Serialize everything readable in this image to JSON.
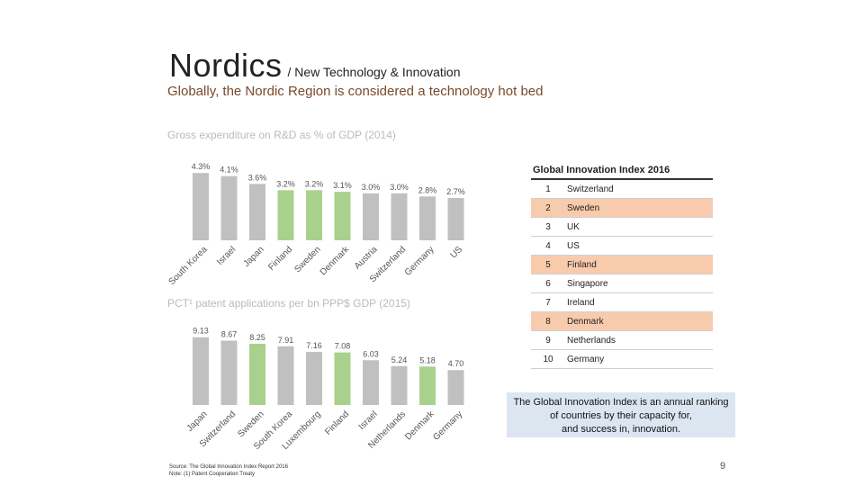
{
  "header": {
    "title": "Nordics",
    "title_sub": "/ New Technology & Innovation",
    "subtitle": "Globally, the Nordic Region is considered a technology hot bed"
  },
  "chart_data": [
    {
      "type": "bar",
      "title": "Gross expenditure on R&D as % of GDP (2014)",
      "categories": [
        "South Korea",
        "Israel",
        "Japan",
        "Finland",
        "Sweden",
        "Denmark",
        "Austria",
        "Switzerland",
        "Germany",
        "US"
      ],
      "values": [
        4.3,
        4.1,
        3.6,
        3.2,
        3.2,
        3.1,
        3.0,
        3.0,
        2.8,
        2.7
      ],
      "labels": [
        "4.3%",
        "4.1%",
        "3.6%",
        "3.2%",
        "3.2%",
        "3.1%",
        "3.0%",
        "3.0%",
        "2.8%",
        "2.7%"
      ],
      "highlight": [
        false,
        false,
        false,
        true,
        true,
        true,
        false,
        false,
        false,
        false
      ],
      "ylim": [
        0,
        4.6
      ],
      "xlabel": "",
      "ylabel": ""
    },
    {
      "type": "bar",
      "title": "PCT¹ patent applications per bn PPP$ GDP (2015)",
      "categories": [
        "Japan",
        "Switzerland",
        "Sweden",
        "South Korea",
        "Luxembourg",
        "Finland",
        "Israel",
        "Netherlands",
        "Denmark",
        "Germany"
      ],
      "values": [
        9.13,
        8.67,
        8.25,
        7.91,
        7.16,
        7.08,
        6.03,
        5.24,
        5.18,
        4.7
      ],
      "labels": [
        "9.13",
        "8.67",
        "8.25",
        "7.91",
        "7.16",
        "7.08",
        "6.03",
        "5.24",
        "5.18",
        "4.70"
      ],
      "highlight": [
        false,
        false,
        true,
        false,
        false,
        true,
        false,
        false,
        true,
        false
      ],
      "ylim": [
        0,
        9.7
      ],
      "xlabel": "",
      "ylabel": ""
    }
  ],
  "colors": {
    "bar": "#c0c0c0",
    "highlight": "#a9d18e",
    "row_highlight": "#f8cbad"
  },
  "gii": {
    "title": "Global Innovation Index 2016",
    "rows": [
      {
        "rank": "1",
        "country": "Switzerland"
      },
      {
        "rank": "2",
        "country": "Sweden"
      },
      {
        "rank": "3",
        "country": "UK"
      },
      {
        "rank": "4",
        "country": "US"
      },
      {
        "rank": "5",
        "country": "Finland"
      },
      {
        "rank": "6",
        "country": "Singapore"
      },
      {
        "rank": "7",
        "country": "Ireland"
      },
      {
        "rank": "8",
        "country": "Denmark"
      },
      {
        "rank": "9",
        "country": "Netherlands"
      },
      {
        "rank": "10",
        "country": "Germany"
      }
    ],
    "highlighted_countries": [
      "Sweden",
      "Finland",
      "Denmark"
    ]
  },
  "note": {
    "line1": "The Global Innovation Index is an annual ranking",
    "line2": "of countries by their capacity for,",
    "line3": "and success in, innovation."
  },
  "source": {
    "line1": "Source: The Global Innovation Index Report 2016",
    "line2": "Note: (1) Patent Cooperation Treaty"
  },
  "page_number": "9"
}
